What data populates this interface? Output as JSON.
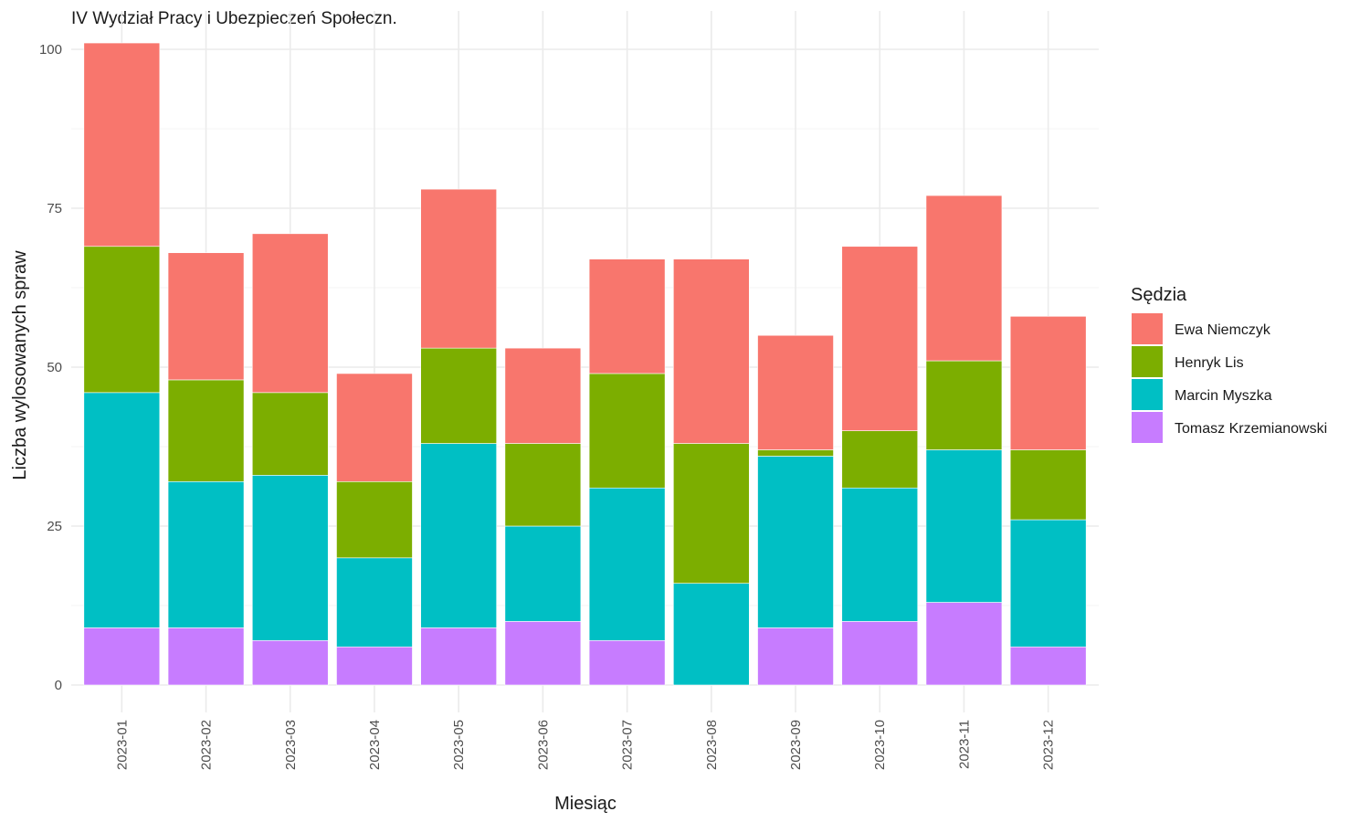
{
  "chart_data": {
    "type": "bar",
    "stacked": true,
    "title": "IV Wydział Pracy i Ubezpieczeń Społeczn.",
    "xlabel": "Miesiąc",
    "ylabel": "Liczba wylosowanych spraw",
    "ylim": [
      0,
      105
    ],
    "yticks": [
      0,
      25,
      50,
      75,
      100
    ],
    "grid": true,
    "legend_title": "Sędzia",
    "legend_position": "right",
    "categories": [
      "2023-01",
      "2023-02",
      "2023-03",
      "2023-04",
      "2023-05",
      "2023-06",
      "2023-07",
      "2023-08",
      "2023-09",
      "2023-10",
      "2023-11",
      "2023-12"
    ],
    "series": [
      {
        "name": "Tomasz Krzemianowski",
        "color": "#C77CFF",
        "values": [
          9,
          9,
          7,
          6,
          9,
          10,
          7,
          0,
          9,
          10,
          13,
          6
        ]
      },
      {
        "name": "Marcin Myszka",
        "color": "#00BFC4",
        "values": [
          37,
          23,
          26,
          14,
          29,
          15,
          24,
          16,
          27,
          21,
          24,
          20
        ]
      },
      {
        "name": "Henryk Lis",
        "color": "#7CAE00",
        "values": [
          23,
          16,
          13,
          12,
          15,
          13,
          18,
          22,
          1,
          9,
          14,
          11
        ]
      },
      {
        "name": "Ewa Niemczyk",
        "color": "#F8766D",
        "values": [
          32,
          20,
          25,
          17,
          25,
          15,
          18,
          29,
          18,
          29,
          26,
          21
        ]
      }
    ],
    "legend_order": [
      "Ewa Niemczyk",
      "Henryk Lis",
      "Marcin Myszka",
      "Tomasz Krzemianowski"
    ]
  }
}
